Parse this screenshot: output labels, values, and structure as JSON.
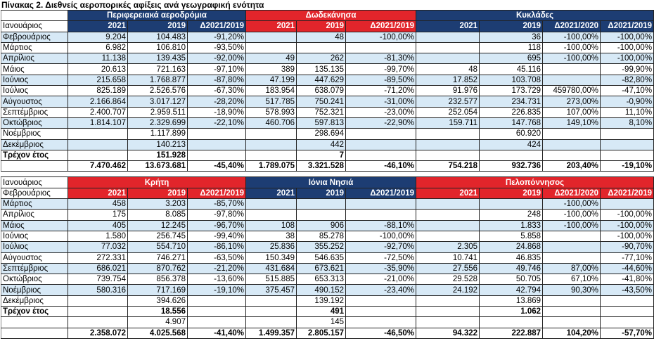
{
  "title": "Πίνακας 2. Διεθνείς αεροπορικές αφίξεις ανά γεωγραφική ενότητα",
  "tables": [
    {
      "column_row_label": "Ιανουάριος",
      "groups": [
        {
          "name": "Περιφερειακά αεροδρόμια",
          "color": "#1d3d73",
          "columns": [
            "2021",
            "2019",
            "Δ2021/2019"
          ]
        },
        {
          "name": "Δωδεκάνησα",
          "color": "#e2252b",
          "columns": [
            "2021",
            "2019",
            "Δ2021/2019"
          ]
        },
        {
          "name": "Κυκλάδες",
          "color": "#1d3d73",
          "columns": [
            "2021",
            "2019",
            "Δ2021/2020",
            "Δ2021/2019"
          ]
        }
      ],
      "rows": [
        {
          "label": "Φεβρουάριος",
          "cells": [
            "9.204",
            "104.483",
            "-91,20%",
            null,
            "48",
            "-100,00%",
            null,
            "36",
            "-100,00%",
            "-100,00%"
          ]
        },
        {
          "label": "Μάρτιος",
          "cells": [
            "6.982",
            "106.810",
            "-93,50%",
            null,
            null,
            null,
            null,
            "118",
            "-100,00%",
            "-100,00%"
          ]
        },
        {
          "label": "Απρίλιος",
          "cells": [
            "11.138",
            "139.435",
            "-92,00%",
            "49",
            "262",
            "-81,30%",
            null,
            "695",
            "-100,00%",
            "-100,00%"
          ]
        },
        {
          "label": "Μάιος",
          "cells": [
            "20.613",
            "721.163",
            "-97,10%",
            "389",
            "135.135",
            "-99,70%",
            "48",
            "45.116",
            null,
            "-99,90%"
          ]
        },
        {
          "label": "Ιούνιος",
          "cells": [
            "215.658",
            "1.768.877",
            "-87,80%",
            "47.199",
            "447.629",
            "-89,50%",
            "17.852",
            "103.708",
            null,
            "-82,80%"
          ]
        },
        {
          "label": "Ιούλιος",
          "cells": [
            "825.189",
            "2.526.576",
            "-67,30%",
            "183.954",
            "638.079",
            "-71,20%",
            "91.976",
            "173.729",
            "459780,00%",
            "-47,10%"
          ]
        },
        {
          "label": "Αύγουστος",
          "cells": [
            "2.166.864",
            "3.017.127",
            "-28,20%",
            "517.785",
            "750.241",
            "-31,00%",
            "232.577",
            "234.731",
            "273,00%",
            "-0,90%"
          ]
        },
        {
          "label": "Σεπτέμβριος",
          "cells": [
            "2.400.707",
            "2.959.511",
            "-18,90%",
            "578.993",
            "752.321",
            "-23,00%",
            "252.054",
            "226.835",
            "107,00%",
            "11,10%"
          ]
        },
        {
          "label": "Οκτώβριος",
          "cells": [
            "1.814.107",
            "2.329.699",
            "-22,10%",
            "460.706",
            "597.813",
            "-22,90%",
            "159.711",
            "147.768",
            "149,10%",
            "8,10%"
          ]
        },
        {
          "label": "Νοέμβριος",
          "cells": [
            null,
            "1.117.899",
            null,
            null,
            "298.694",
            null,
            null,
            "60.920",
            null,
            null
          ]
        },
        {
          "label": "Δεκέμβριος",
          "cells": [
            null,
            "140.213",
            null,
            null,
            "442",
            null,
            null,
            "424",
            null,
            null
          ]
        },
        {
          "label": "Τρέχον έτος",
          "bold": true,
          "cells": [
            null,
            "151.928",
            null,
            null,
            "7",
            null,
            null,
            null,
            null,
            null
          ]
        },
        {
          "label": null,
          "bold": true,
          "cells": [
            "7.470.462",
            "13.673.681",
            "-45,40%",
            "1.789.075",
            "3.321.528",
            "-46,10%",
            "754.218",
            "932.736",
            "203,40%",
            "-19,10%"
          ]
        }
      ]
    },
    {
      "group_row_label": "Ιανουάριος",
      "column_row_label": "Φεβρουάριος",
      "groups": [
        {
          "name": "Κρήτη",
          "color": "#e2252b",
          "columns": [
            "2021",
            "2019",
            "Δ2021/2019"
          ]
        },
        {
          "name": "Ιόνια Νησιά",
          "color": "#1d3d73",
          "columns": [
            "2021",
            "2019",
            "Δ2021/2019"
          ]
        },
        {
          "name": "Πελοπόννησος",
          "color": "#e2252b",
          "columns": [
            "2021",
            "2019",
            "Δ2021/2020",
            "Δ2021/2019"
          ]
        }
      ],
      "rows": [
        {
          "label": "Μάρτιος",
          "cells": [
            "458",
            "3.203",
            "-85,70%",
            null,
            null,
            null,
            null,
            null,
            "-100,00%",
            null
          ]
        },
        {
          "label": "Απρίλιος",
          "cells": [
            "175",
            "8.085",
            "-97,80%",
            null,
            null,
            null,
            null,
            "248",
            "-100,00%",
            "-100,00%"
          ]
        },
        {
          "label": "Μάιος",
          "cells": [
            "405",
            "12.245",
            "-96,70%",
            "108",
            "906",
            "-88,10%",
            null,
            "1.833",
            "-100,00%",
            "-100,00%"
          ]
        },
        {
          "label": "Ιούνιος",
          "cells": [
            "1.580",
            "256.745",
            "-99,40%",
            "38",
            "85.278",
            "-100,00%",
            null,
            "5.858",
            null,
            "-100,00%"
          ]
        },
        {
          "label": "Ιούλιος",
          "cells": [
            "77.032",
            "554.710",
            "-86,10%",
            "25.836",
            "355.252",
            "-92,70%",
            "2.305",
            "24.868",
            null,
            "-90,70%"
          ]
        },
        {
          "label": "Αύγουστος",
          "cells": [
            "272.331",
            "746.271",
            "-63,50%",
            "150.349",
            "546.635",
            "-72,50%",
            "10.741",
            "46.835",
            null,
            "-77,10%"
          ]
        },
        {
          "label": "Σεπτέμβριος",
          "cells": [
            "686.021",
            "870.762",
            "-21,20%",
            "431.684",
            "673.621",
            "-35,90%",
            "27.556",
            "49.746",
            "87,00%",
            "-44,60%"
          ]
        },
        {
          "label": "Οκτώβριος",
          "cells": [
            "739.754",
            "856.378",
            "-13,60%",
            "515.885",
            "653.313",
            "-21,00%",
            "29.528",
            "50.705",
            "67,10%",
            "-41,80%"
          ]
        },
        {
          "label": "Νοέμβριος",
          "cells": [
            "580.316",
            "717.169",
            "-19,10%",
            "375.457",
            "490.152",
            "-23,40%",
            "24.192",
            "42.794",
            "90,30%",
            "-43,50%"
          ]
        },
        {
          "label": "Δεκέμβριος",
          "cells": [
            null,
            "394.626",
            null,
            null,
            "139.192",
            null,
            null,
            "13.869",
            null,
            null
          ]
        },
        {
          "label": "Τρέχον έτος",
          "bold": true,
          "cells": [
            null,
            "18.556",
            null,
            null,
            "491",
            null,
            null,
            "1.062",
            null,
            null
          ]
        },
        {
          "label": null,
          "cells": [
            null,
            "4.907",
            null,
            null,
            "145",
            null,
            null,
            null,
            null,
            null
          ]
        },
        {
          "label": null,
          "bold": true,
          "cells": [
            "2.358.072",
            "4.025.568",
            "-41,40%",
            "1.499.357",
            "2.805.157",
            "-46,50%",
            "94.322",
            "222.887",
            "104,20%",
            "-57,70%"
          ]
        }
      ]
    }
  ]
}
